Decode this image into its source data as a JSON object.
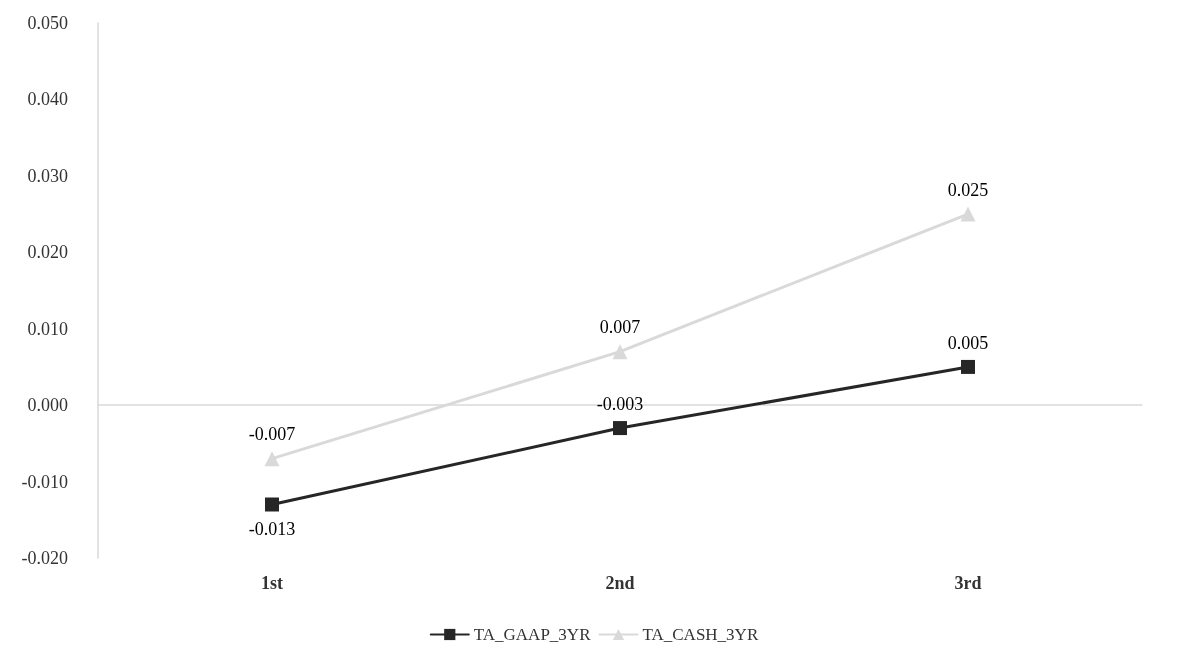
{
  "chart_data": {
    "type": "line",
    "categories": [
      "1st",
      "2nd",
      "3rd"
    ],
    "series": [
      {
        "name": "TA_GAAP_3YR",
        "color": "#262626",
        "marker": "square",
        "values": [
          -0.013,
          -0.003,
          0.005
        ]
      },
      {
        "name": "TA_CASH_3YR",
        "color": "#d9d9d9",
        "marker": "triangle",
        "values": [
          -0.007,
          0.007,
          0.025
        ]
      }
    ],
    "ylim": [
      -0.02,
      0.05
    ],
    "yticks": [
      {
        "value": -0.02,
        "label": "-0.020"
      },
      {
        "value": -0.01,
        "label": "-0.010"
      },
      {
        "value": 0,
        "label": "0.000"
      },
      {
        "value": 0.01,
        "label": "0.010"
      },
      {
        "value": 0.02,
        "label": "0.020"
      },
      {
        "value": 0.03,
        "label": "0.030"
      },
      {
        "value": 0.04,
        "label": "0.040"
      },
      {
        "value": 0.05,
        "label": "0.050"
      }
    ],
    "data_labels": true,
    "legend": "bottom"
  }
}
